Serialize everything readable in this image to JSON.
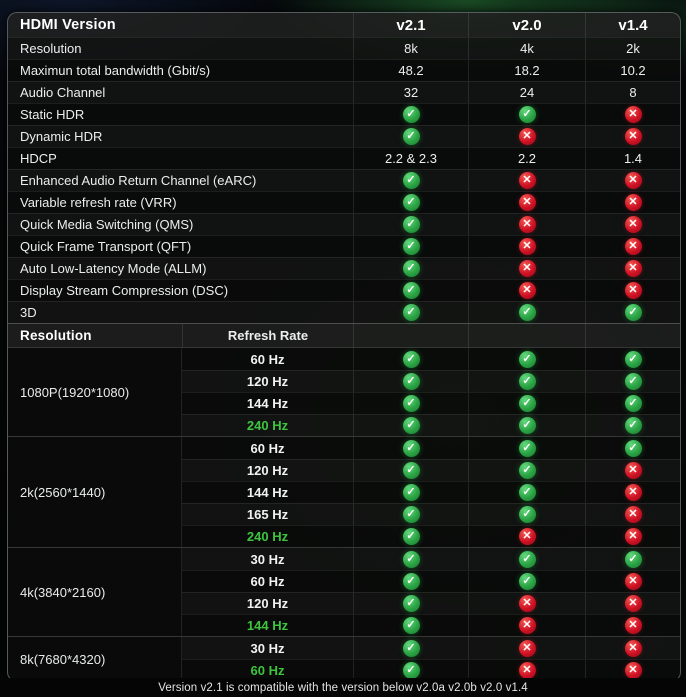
{
  "page": {
    "footer_note": "Version v2.1 is compatible with the version below v2.0a v2.0b v2.0 v1.4"
  },
  "icons": {
    "check": "✓",
    "cross": "✕"
  },
  "colors": {
    "check_green": "#2aa344",
    "cross_red": "#d01124",
    "highlight_green": "#3ec43e",
    "table_border": "#969ca2"
  },
  "chart_data": [
    {
      "type": "table",
      "title": "HDMI Version",
      "columns": [
        "HDMI Version",
        "v2.1",
        "v2.0",
        "v1.4"
      ],
      "rows": [
        [
          "Resolution",
          "8k",
          "4k",
          "2k"
        ],
        [
          "Maximun total bandwidth (Gbit/s)",
          "48.2",
          "18.2",
          "10.2"
        ],
        [
          "Audio Channel",
          "32",
          "24",
          "8"
        ],
        [
          "Static HDR",
          "yes",
          "yes",
          "no"
        ],
        [
          "Dynamic HDR",
          "yes",
          "no",
          "no"
        ],
        [
          "HDCP",
          "2.2 & 2.3",
          "2.2",
          "1.4"
        ],
        [
          "Enhanced Audio Return Channel (eARC)",
          "yes",
          "no",
          "no"
        ],
        [
          "Variable refresh rate (VRR)",
          "yes",
          "no",
          "no"
        ],
        [
          "Quick Media Switching (QMS)",
          "yes",
          "no",
          "no"
        ],
        [
          "Quick Frame Transport (QFT)",
          "yes",
          "no",
          "no"
        ],
        [
          "Auto Low-Latency Mode (ALLM)",
          "yes",
          "no",
          "no"
        ],
        [
          "Display Stream Compression (DSC)",
          "yes",
          "no",
          "no"
        ],
        [
          "3D",
          "yes",
          "yes",
          "yes"
        ]
      ]
    },
    {
      "type": "table",
      "title": "Resolution / Refresh Rate support",
      "columns": [
        "Resolution",
        "Refresh Rate",
        "v2.1",
        "v2.0",
        "v1.4"
      ],
      "rows": [
        {
          "resolution": "1080P(1920*1080)",
          "rate": "60 Hz",
          "highlight": false,
          "values": [
            "yes",
            "yes",
            "yes"
          ]
        },
        {
          "resolution": "1080P(1920*1080)",
          "rate": "120 Hz",
          "highlight": false,
          "values": [
            "yes",
            "yes",
            "yes"
          ]
        },
        {
          "resolution": "1080P(1920*1080)",
          "rate": "144 Hz",
          "highlight": false,
          "values": [
            "yes",
            "yes",
            "yes"
          ]
        },
        {
          "resolution": "1080P(1920*1080)",
          "rate": "240 Hz",
          "highlight": true,
          "values": [
            "yes",
            "yes",
            "yes"
          ]
        },
        {
          "resolution": "2k(2560*1440)",
          "rate": "60 Hz",
          "highlight": false,
          "values": [
            "yes",
            "yes",
            "yes"
          ]
        },
        {
          "resolution": "2k(2560*1440)",
          "rate": "120 Hz",
          "highlight": false,
          "values": [
            "yes",
            "yes",
            "no"
          ]
        },
        {
          "resolution": "2k(2560*1440)",
          "rate": "144 Hz",
          "highlight": false,
          "values": [
            "yes",
            "yes",
            "no"
          ]
        },
        {
          "resolution": "2k(2560*1440)",
          "rate": "165 Hz",
          "highlight": false,
          "values": [
            "yes",
            "yes",
            "no"
          ]
        },
        {
          "resolution": "2k(2560*1440)",
          "rate": "240 Hz",
          "highlight": true,
          "values": [
            "yes",
            "no",
            "no"
          ]
        },
        {
          "resolution": "4k(3840*2160)",
          "rate": "30 Hz",
          "highlight": false,
          "values": [
            "yes",
            "yes",
            "yes"
          ]
        },
        {
          "resolution": "4k(3840*2160)",
          "rate": "60 Hz",
          "highlight": false,
          "values": [
            "yes",
            "yes",
            "no"
          ]
        },
        {
          "resolution": "4k(3840*2160)",
          "rate": "120 Hz",
          "highlight": false,
          "values": [
            "yes",
            "no",
            "no"
          ]
        },
        {
          "resolution": "4k(3840*2160)",
          "rate": "144 Hz",
          "highlight": true,
          "values": [
            "yes",
            "no",
            "no"
          ]
        },
        {
          "resolution": "8k(7680*4320)",
          "rate": "30 Hz",
          "highlight": false,
          "values": [
            "yes",
            "no",
            "no"
          ]
        },
        {
          "resolution": "8k(7680*4320)",
          "rate": "60 Hz",
          "highlight": true,
          "values": [
            "yes",
            "no",
            "no"
          ]
        }
      ]
    }
  ]
}
